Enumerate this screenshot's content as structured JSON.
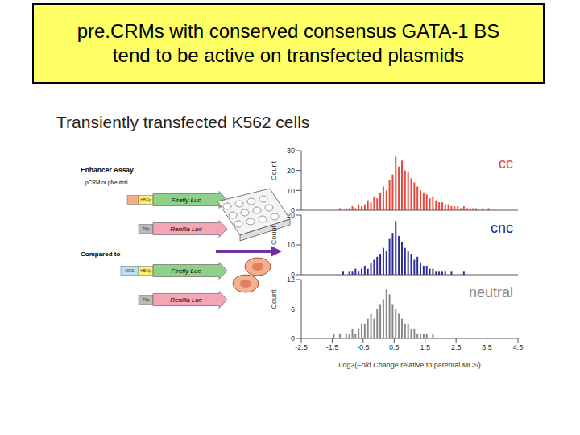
{
  "slide": {
    "title_lines": [
      "pre.CRMs with conserved consensus GATA-1 BS",
      "tend to be active on transfected plasmids"
    ],
    "subtitle": "Transiently transfected K562 cells"
  },
  "diagram": {
    "heading": "Enhancer Assay",
    "construct_label": "pCRM or pNeutral",
    "rows": [
      {
        "promoter": "HBGp",
        "reporter": "Firefly Luc"
      },
      {
        "promoter": "TKp",
        "reporter": "Renilla Luc"
      }
    ],
    "compared_label": "Compared to",
    "compared_rows": [
      {
        "element": "MCS",
        "promoter": "HBGp",
        "reporter": "Firefly Luc"
      },
      {
        "promoter": "TKp",
        "reporter": "Renilla Luc"
      }
    ]
  },
  "chart_data": [
    {
      "type": "histogram",
      "name": "cc",
      "color": "#e8483c",
      "ylabel": "Count",
      "bins": [
        -2,
        -1.9,
        -1.8,
        -1.7,
        -1.6,
        -1.5,
        -1.4,
        -1.3,
        -1.2,
        -1.1,
        -1,
        -0.9,
        -0.8,
        -0.7,
        -0.6,
        -0.5,
        -0.4,
        -0.3,
        -0.2,
        -0.1,
        0,
        0.1,
        0.2,
        0.3,
        0.4,
        0.5,
        0.6,
        0.7,
        0.8,
        0.9,
        1,
        1.1,
        1.2,
        1.3,
        1.4,
        1.5,
        1.6,
        1.7,
        1.8,
        1.9,
        2,
        2.1,
        2.2,
        2.3,
        2.4,
        2.5,
        2.6,
        2.7,
        2.8,
        2.9,
        3,
        3.1,
        3.2,
        3.3,
        3.4,
        3.5,
        3.6,
        3.7,
        3.8,
        3.9,
        4
      ],
      "counts": [
        0,
        0,
        0,
        0,
        0,
        0,
        0,
        1,
        0,
        1,
        1,
        2,
        1,
        3,
        2,
        3,
        5,
        4,
        7,
        6,
        9,
        12,
        10,
        15,
        18,
        27,
        22,
        25,
        20,
        19,
        16,
        14,
        12,
        10,
        9,
        8,
        6,
        7,
        5,
        4,
        4,
        3,
        3,
        2,
        2,
        2,
        1,
        2,
        1,
        1,
        1,
        1,
        0,
        1,
        0,
        1,
        0,
        0,
        0,
        0
      ],
      "xlim": [
        -2.5,
        4.5
      ],
      "xticks": [
        -2.5,
        -1.5,
        -0.5,
        0.5,
        1.5,
        2.5,
        3.5,
        4.5
      ],
      "ylim": [
        0,
        30
      ],
      "yticks": [
        0,
        10,
        20,
        30
      ],
      "tick_labels": "y"
    },
    {
      "type": "histogram",
      "name": "cnc",
      "color": "#2b2c9a",
      "ylabel": "Count",
      "bins": [
        -2,
        -1.9,
        -1.8,
        -1.7,
        -1.6,
        -1.5,
        -1.4,
        -1.3,
        -1.2,
        -1.1,
        -1,
        -0.9,
        -0.8,
        -0.7,
        -0.6,
        -0.5,
        -0.4,
        -0.3,
        -0.2,
        -0.1,
        0,
        0.1,
        0.2,
        0.3,
        0.4,
        0.5,
        0.6,
        0.7,
        0.8,
        0.9,
        1,
        1.1,
        1.2,
        1.3,
        1.4,
        1.5,
        1.6,
        1.7,
        1.8,
        1.9,
        2,
        2.1,
        2.2,
        2.3,
        2.4,
        2.5,
        2.6,
        2.7,
        2.8,
        2.9,
        3,
        3.1,
        3.2,
        3.3,
        3.4,
        3.5,
        3.6,
        3.7,
        3.8,
        3.9,
        4
      ],
      "counts": [
        0,
        0,
        0,
        0,
        0,
        0,
        0,
        0,
        1,
        0,
        1,
        1,
        2,
        1,
        2,
        3,
        2,
        4,
        5,
        6,
        7,
        9,
        8,
        12,
        14,
        18,
        13,
        11,
        9,
        8,
        7,
        5,
        6,
        4,
        3,
        3,
        2,
        2,
        1,
        1,
        1,
        1,
        0,
        1,
        0,
        0,
        0,
        1,
        0,
        0,
        0,
        0,
        0,
        0,
        0,
        0,
        0,
        0,
        0,
        0
      ],
      "xlim": [
        -2.5,
        4.5
      ],
      "xticks": [
        -2.5,
        -1.5,
        -0.5,
        0.5,
        1.5,
        2.5,
        3.5,
        4.5
      ],
      "ylim": [
        0,
        20
      ],
      "yticks": [
        0,
        10,
        20
      ],
      "tick_labels": "y"
    },
    {
      "type": "histogram",
      "name": "neutral",
      "color": "#888888",
      "ylabel": "Count",
      "xlabel": "Log2(Fold Change relative to parental MCS)",
      "bins": [
        -2,
        -1.9,
        -1.8,
        -1.7,
        -1.6,
        -1.5,
        -1.4,
        -1.3,
        -1.2,
        -1.1,
        -1,
        -0.9,
        -0.8,
        -0.7,
        -0.6,
        -0.5,
        -0.4,
        -0.3,
        -0.2,
        -0.1,
        0,
        0.1,
        0.2,
        0.3,
        0.4,
        0.5,
        0.6,
        0.7,
        0.8,
        0.9,
        1,
        1.1,
        1.2,
        1.3,
        1.4,
        1.5,
        1.6,
        1.7,
        1.8,
        1.9,
        2,
        2.1,
        2.2,
        2.3,
        2.4,
        2.5,
        2.6,
        2.7,
        2.8,
        2.9,
        3,
        3.1,
        3.2,
        3.3,
        3.4,
        3.5,
        3.6,
        3.7,
        3.8,
        3.9,
        4
      ],
      "counts": [
        0,
        0,
        0,
        0,
        0,
        1,
        0,
        1,
        0,
        1,
        1,
        2,
        1,
        2,
        3,
        3,
        4,
        5,
        4,
        6,
        7,
        8,
        10,
        9,
        7,
        6,
        5,
        4,
        3,
        3,
        2,
        2,
        1,
        1,
        1,
        1,
        0,
        1,
        0,
        0,
        0,
        0,
        0,
        0,
        0,
        0,
        0,
        0,
        0,
        0,
        0,
        0,
        0,
        0,
        0,
        0,
        0,
        0,
        0,
        0
      ],
      "xlim": [
        -2.5,
        4.5
      ],
      "xticks": [
        -2.5,
        -1.5,
        -0.5,
        0.5,
        1.5,
        2.5,
        3.5,
        4.5
      ],
      "ylim": [
        0,
        12
      ],
      "yticks": [
        0,
        6,
        12
      ]
    }
  ]
}
